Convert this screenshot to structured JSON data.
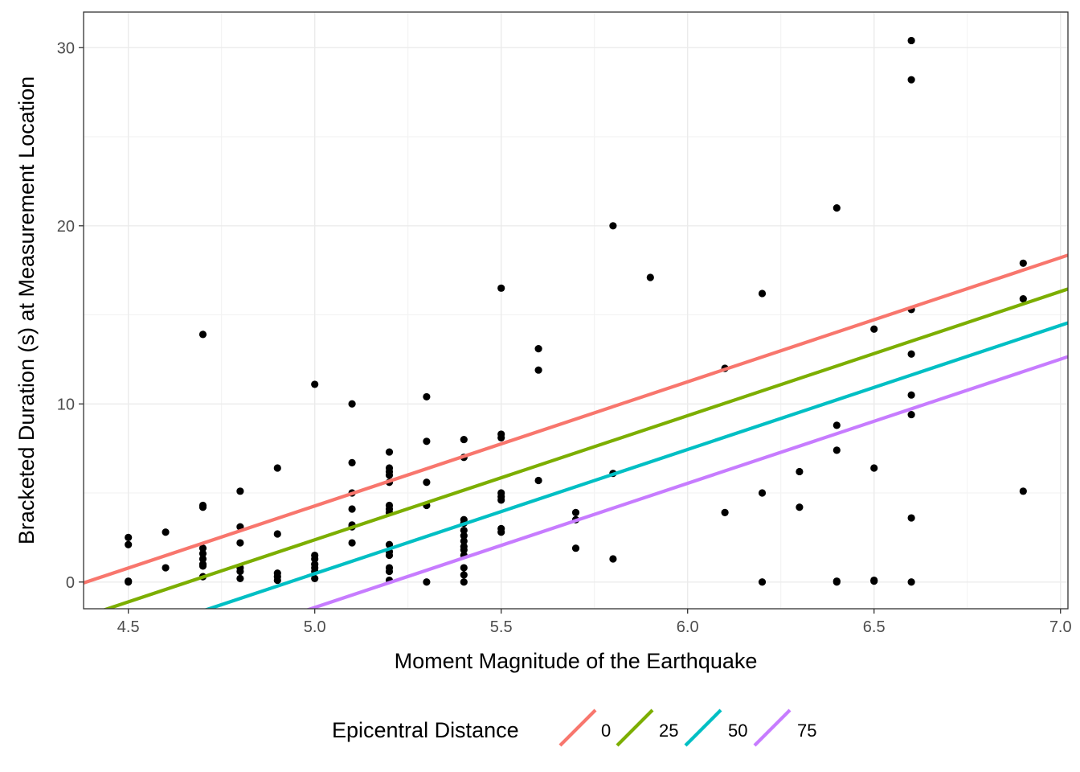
{
  "chart_data": {
    "type": "scatter",
    "xlabel": "Moment Magnitude of the Earthquake",
    "ylabel": "Bracketed Duration (s) at Measurement Location",
    "xlim": [
      4.38,
      7.02
    ],
    "ylim": [
      -1.5,
      32
    ],
    "x_ticks": [
      4.5,
      5.0,
      5.5,
      6.0,
      6.5,
      7.0
    ],
    "x_tick_labels": [
      "4.5",
      "5.0",
      "5.5",
      "6.0",
      "6.5",
      "7.0"
    ],
    "y_ticks": [
      0,
      10,
      20,
      30
    ],
    "y_tick_labels": [
      "0",
      "10",
      "20",
      "30"
    ],
    "grid": true,
    "legend": {
      "title": "Epicentral Distance",
      "position": "bottom",
      "entries": [
        {
          "label": "0",
          "color": "#F8766D"
        },
        {
          "label": "25",
          "color": "#7CAE00"
        },
        {
          "label": "50",
          "color": "#00BFC4"
        },
        {
          "label": "75",
          "color": "#C77CFF"
        }
      ]
    },
    "lines": [
      {
        "name": "0",
        "color": "#F8766D",
        "x": [
          4.38,
          7.02
        ],
        "y": [
          -0.05,
          18.35
        ]
      },
      {
        "name": "25",
        "color": "#7CAE00",
        "x": [
          4.38,
          7.02
        ],
        "y": [
          -1.95,
          16.45
        ]
      },
      {
        "name": "50",
        "color": "#00BFC4",
        "x": [
          4.38,
          7.02
        ],
        "y": [
          -3.85,
          14.55
        ]
      },
      {
        "name": "75",
        "color": "#C77CFF",
        "x": [
          4.38,
          7.02
        ],
        "y": [
          -5.75,
          12.65
        ]
      }
    ],
    "points": [
      [
        4.5,
        2.5
      ],
      [
        4.5,
        2.1
      ],
      [
        4.5,
        0.0
      ],
      [
        4.5,
        0.05
      ],
      [
        4.6,
        2.8
      ],
      [
        4.6,
        0.8
      ],
      [
        4.7,
        13.9
      ],
      [
        4.7,
        4.3
      ],
      [
        4.7,
        4.2
      ],
      [
        4.7,
        1.9
      ],
      [
        4.7,
        1.6
      ],
      [
        4.7,
        1.3
      ],
      [
        4.7,
        1.0
      ],
      [
        4.7,
        0.9
      ],
      [
        4.7,
        0.3
      ],
      [
        4.8,
        5.1
      ],
      [
        4.8,
        3.1
      ],
      [
        4.8,
        2.2
      ],
      [
        4.8,
        0.8
      ],
      [
        4.8,
        0.6
      ],
      [
        4.8,
        0.2
      ],
      [
        4.9,
        6.4
      ],
      [
        4.9,
        2.7
      ],
      [
        4.9,
        0.5
      ],
      [
        4.9,
        0.3
      ],
      [
        4.9,
        0.1
      ],
      [
        5.0,
        11.1
      ],
      [
        5.0,
        1.5
      ],
      [
        5.0,
        1.3
      ],
      [
        5.0,
        1.0
      ],
      [
        5.0,
        0.8
      ],
      [
        5.0,
        0.6
      ],
      [
        5.0,
        0.2
      ],
      [
        5.1,
        10.0
      ],
      [
        5.1,
        6.7
      ],
      [
        5.1,
        5.0
      ],
      [
        5.1,
        4.1
      ],
      [
        5.1,
        3.2
      ],
      [
        5.1,
        3.1
      ],
      [
        5.1,
        2.2
      ],
      [
        5.2,
        7.3
      ],
      [
        5.2,
        6.4
      ],
      [
        5.2,
        6.2
      ],
      [
        5.2,
        6.0
      ],
      [
        5.2,
        5.6
      ],
      [
        5.2,
        4.3
      ],
      [
        5.2,
        4.1
      ],
      [
        5.2,
        3.9
      ],
      [
        5.2,
        2.1
      ],
      [
        5.2,
        1.7
      ],
      [
        5.2,
        1.5
      ],
      [
        5.2,
        0.8
      ],
      [
        5.2,
        0.6
      ],
      [
        5.2,
        0.1
      ],
      [
        5.3,
        10.4
      ],
      [
        5.3,
        7.9
      ],
      [
        5.3,
        5.6
      ],
      [
        5.3,
        4.3
      ],
      [
        5.3,
        0.0
      ],
      [
        5.4,
        8.0
      ],
      [
        5.4,
        7.0
      ],
      [
        5.4,
        3.5
      ],
      [
        5.4,
        3.3
      ],
      [
        5.4,
        2.9
      ],
      [
        5.4,
        2.6
      ],
      [
        5.4,
        2.3
      ],
      [
        5.4,
        2.0
      ],
      [
        5.4,
        1.8
      ],
      [
        5.4,
        1.5
      ],
      [
        5.4,
        0.8
      ],
      [
        5.4,
        0.4
      ],
      [
        5.4,
        0.0
      ],
      [
        5.5,
        16.5
      ],
      [
        5.5,
        8.3
      ],
      [
        5.5,
        8.1
      ],
      [
        5.5,
        5.0
      ],
      [
        5.5,
        4.8
      ],
      [
        5.5,
        4.6
      ],
      [
        5.5,
        3.0
      ],
      [
        5.5,
        2.8
      ],
      [
        5.6,
        13.1
      ],
      [
        5.6,
        11.9
      ],
      [
        5.6,
        5.7
      ],
      [
        5.7,
        3.9
      ],
      [
        5.7,
        3.5
      ],
      [
        5.7,
        1.9
      ],
      [
        5.8,
        20.0
      ],
      [
        5.8,
        6.1
      ],
      [
        5.8,
        1.3
      ],
      [
        5.9,
        17.1
      ],
      [
        6.1,
        12.0
      ],
      [
        6.1,
        3.9
      ],
      [
        6.2,
        16.2
      ],
      [
        6.2,
        5.0
      ],
      [
        6.2,
        0.0
      ],
      [
        6.3,
        6.2
      ],
      [
        6.3,
        4.2
      ],
      [
        6.4,
        21.0
      ],
      [
        6.4,
        8.8
      ],
      [
        6.4,
        7.4
      ],
      [
        6.4,
        0.0
      ],
      [
        6.4,
        0.05
      ],
      [
        6.5,
        14.2
      ],
      [
        6.5,
        6.4
      ],
      [
        6.5,
        0.1
      ],
      [
        6.5,
        0.05
      ],
      [
        6.6,
        30.4
      ],
      [
        6.6,
        28.2
      ],
      [
        6.6,
        15.3
      ],
      [
        6.6,
        12.8
      ],
      [
        6.6,
        10.5
      ],
      [
        6.6,
        9.4
      ],
      [
        6.6,
        3.6
      ],
      [
        6.6,
        0.0
      ],
      [
        6.9,
        17.9
      ],
      [
        6.9,
        15.9
      ],
      [
        6.9,
        5.1
      ]
    ]
  }
}
